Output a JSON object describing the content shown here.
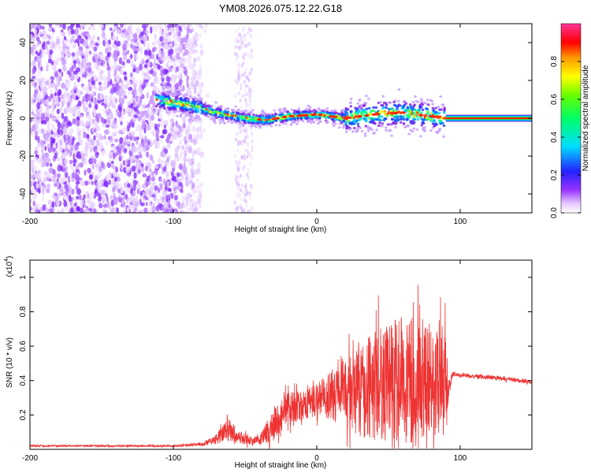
{
  "title": "YM08.2026.075.12.22.G18",
  "chart_data": [
    {
      "type": "heatmap",
      "xlabel": "Height of straight line (km)",
      "ylabel": "Frequency (Hz)",
      "xlim": [
        -200,
        150
      ],
      "ylim": [
        -50,
        50
      ],
      "xticks": [
        -200,
        -100,
        0,
        100
      ],
      "yticks": [
        -40,
        -20,
        0,
        20,
        40
      ],
      "colorbar": {
        "label": "Normalized spectral amplitude",
        "range": [
          0,
          1
        ],
        "ticks": [
          "0.0",
          "0.2",
          "0.4",
          "0.6",
          "0.8"
        ]
      },
      "features": [
        {
          "name": "noise",
          "x_range": [
            -200,
            -80
          ],
          "freq_range": [
            -50,
            50
          ]
        },
        {
          "name": "noise-strip",
          "x_range": [
            -57,
            -45
          ],
          "freq_range": [
            -50,
            50
          ]
        },
        {
          "name": "signal-band",
          "x_range": [
            -112,
            90
          ],
          "freq_center": [
            10,
            7,
            3,
            0,
            -1,
            1,
            2,
            0,
            2,
            3,
            1,
            0
          ],
          "x": [
            -112,
            -90,
            -70,
            -50,
            -35,
            -20,
            0,
            20,
            40,
            60,
            80,
            90
          ]
        },
        {
          "name": "clean-line",
          "x_range": [
            90,
            150
          ],
          "freq": 0
        }
      ]
    },
    {
      "type": "line",
      "xlabel": "Height of straight line (km)",
      "ylabel": "SNR (10 * v/v)",
      "yscale_label": "(x10",
      "yscale_exp": "4",
      "xlim": [
        -200,
        150
      ],
      "ylim": [
        0,
        1.1
      ],
      "xticks": [
        -200,
        -100,
        0,
        100
      ],
      "yticks": [
        "0.2",
        "0.4",
        "0.6",
        "0.8",
        "1"
      ],
      "series": [
        {
          "name": "SNR",
          "color": "#ee3333",
          "x": [
            -200,
            -150,
            -100,
            -80,
            -70,
            -62,
            -55,
            -48,
            -40,
            -33,
            -28,
            -20,
            -10,
            0,
            10,
            20,
            30,
            40,
            50,
            60,
            70,
            80,
            90,
            92,
            95,
            100,
            120,
            150
          ],
          "mean": [
            0.02,
            0.02,
            0.02,
            0.03,
            0.06,
            0.12,
            0.08,
            0.05,
            0.05,
            0.12,
            0.18,
            0.23,
            0.26,
            0.29,
            0.31,
            0.33,
            0.35,
            0.37,
            0.39,
            0.4,
            0.41,
            0.41,
            0.4,
            0.36,
            0.44,
            0.43,
            0.42,
            0.39
          ],
          "amp": [
            0.005,
            0.005,
            0.005,
            0.01,
            0.03,
            0.07,
            0.04,
            0.03,
            0.03,
            0.08,
            0.1,
            0.1,
            0.09,
            0.1,
            0.14,
            0.2,
            0.28,
            0.33,
            0.35,
            0.38,
            0.36,
            0.33,
            0.32,
            0.05,
            0.015,
            0.012,
            0.012,
            0.012
          ]
        }
      ]
    }
  ],
  "colors": {
    "signal": "#ee3333",
    "axis": "#000000",
    "noise": "#8a2be2"
  }
}
